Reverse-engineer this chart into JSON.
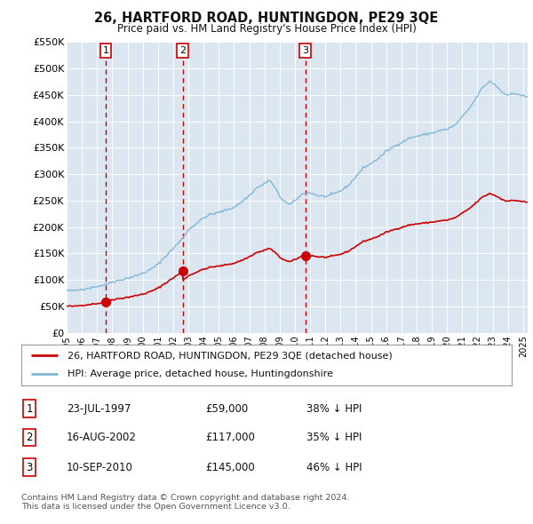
{
  "title": "26, HARTFORD ROAD, HUNTINGDON, PE29 3QE",
  "subtitle": "Price paid vs. HM Land Registry's House Price Index (HPI)",
  "background_color": "#ffffff",
  "plot_bg_color": "#dce6f1",
  "grid_color": "#ffffff",
  "ylim": [
    0,
    550000
  ],
  "yticks": [
    0,
    50000,
    100000,
    150000,
    200000,
    250000,
    300000,
    350000,
    400000,
    450000,
    500000,
    550000
  ],
  "ytick_labels": [
    "£0",
    "£50K",
    "£100K",
    "£150K",
    "£200K",
    "£250K",
    "£300K",
    "£350K",
    "£400K",
    "£450K",
    "£500K",
    "£550K"
  ],
  "sale_dates_year": [
    1997.56,
    2002.62,
    2010.69
  ],
  "sale_prices": [
    59000,
    117000,
    145000
  ],
  "sale_labels": [
    "1",
    "2",
    "3"
  ],
  "hpi_line_color": "#7fb8d8",
  "sale_line_color": "#cc0000",
  "sale_dot_color": "#cc0000",
  "vline_color": "#cc0000",
  "legend_sale_label": "26, HARTFORD ROAD, HUNTINGDON, PE29 3QE (detached house)",
  "legend_hpi_label": "HPI: Average price, detached house, Huntingdonshire",
  "table_rows": [
    {
      "num": "1",
      "date": "23-JUL-1997",
      "price": "£59,000",
      "hpi": "38% ↓ HPI"
    },
    {
      "num": "2",
      "date": "16-AUG-2002",
      "price": "£117,000",
      "hpi": "35% ↓ HPI"
    },
    {
      "num": "3",
      "date": "10-SEP-2010",
      "price": "£145,000",
      "hpi": "46% ↓ HPI"
    }
  ],
  "footer": "Contains HM Land Registry data © Crown copyright and database right 2024.\nThis data is licensed under the Open Government Licence v3.0.",
  "xlim_start": 1995.0,
  "xlim_end": 2025.3,
  "hpi_control_points": [
    [
      1995.0,
      80000
    ],
    [
      1995.5,
      79000
    ],
    [
      1996.0,
      82000
    ],
    [
      1996.5,
      85000
    ],
    [
      1997.0,
      88000
    ],
    [
      1997.5,
      91000
    ],
    [
      1998.0,
      97000
    ],
    [
      1998.5,
      100000
    ],
    [
      1999.0,
      104000
    ],
    [
      1999.5,
      108000
    ],
    [
      2000.0,
      113000
    ],
    [
      2000.5,
      120000
    ],
    [
      2001.0,
      130000
    ],
    [
      2001.5,
      145000
    ],
    [
      2002.0,
      160000
    ],
    [
      2002.5,
      175000
    ],
    [
      2003.0,
      195000
    ],
    [
      2003.5,
      207000
    ],
    [
      2004.0,
      218000
    ],
    [
      2004.5,
      225000
    ],
    [
      2005.0,
      228000
    ],
    [
      2005.5,
      233000
    ],
    [
      2006.0,
      238000
    ],
    [
      2006.5,
      248000
    ],
    [
      2007.0,
      260000
    ],
    [
      2007.5,
      275000
    ],
    [
      2008.0,
      282000
    ],
    [
      2008.3,
      290000
    ],
    [
      2008.7,
      275000
    ],
    [
      2009.0,
      258000
    ],
    [
      2009.3,
      250000
    ],
    [
      2009.5,
      245000
    ],
    [
      2009.7,
      243000
    ],
    [
      2010.0,
      250000
    ],
    [
      2010.5,
      263000
    ],
    [
      2011.0,
      265000
    ],
    [
      2011.5,
      260000
    ],
    [
      2012.0,
      258000
    ],
    [
      2012.5,
      262000
    ],
    [
      2013.0,
      268000
    ],
    [
      2013.5,
      278000
    ],
    [
      2014.0,
      295000
    ],
    [
      2014.5,
      312000
    ],
    [
      2015.0,
      320000
    ],
    [
      2015.5,
      330000
    ],
    [
      2016.0,
      343000
    ],
    [
      2016.5,
      352000
    ],
    [
      2017.0,
      360000
    ],
    [
      2017.5,
      368000
    ],
    [
      2018.0,
      372000
    ],
    [
      2018.5,
      375000
    ],
    [
      2019.0,
      378000
    ],
    [
      2019.5,
      382000
    ],
    [
      2020.0,
      385000
    ],
    [
      2020.5,
      392000
    ],
    [
      2021.0,
      408000
    ],
    [
      2021.5,
      425000
    ],
    [
      2022.0,
      448000
    ],
    [
      2022.3,
      462000
    ],
    [
      2022.6,
      470000
    ],
    [
      2022.8,
      475000
    ],
    [
      2023.0,
      472000
    ],
    [
      2023.3,
      465000
    ],
    [
      2023.6,
      455000
    ],
    [
      2024.0,
      450000
    ],
    [
      2024.5,
      452000
    ],
    [
      2025.0,
      448000
    ],
    [
      2025.3,
      445000
    ]
  ]
}
